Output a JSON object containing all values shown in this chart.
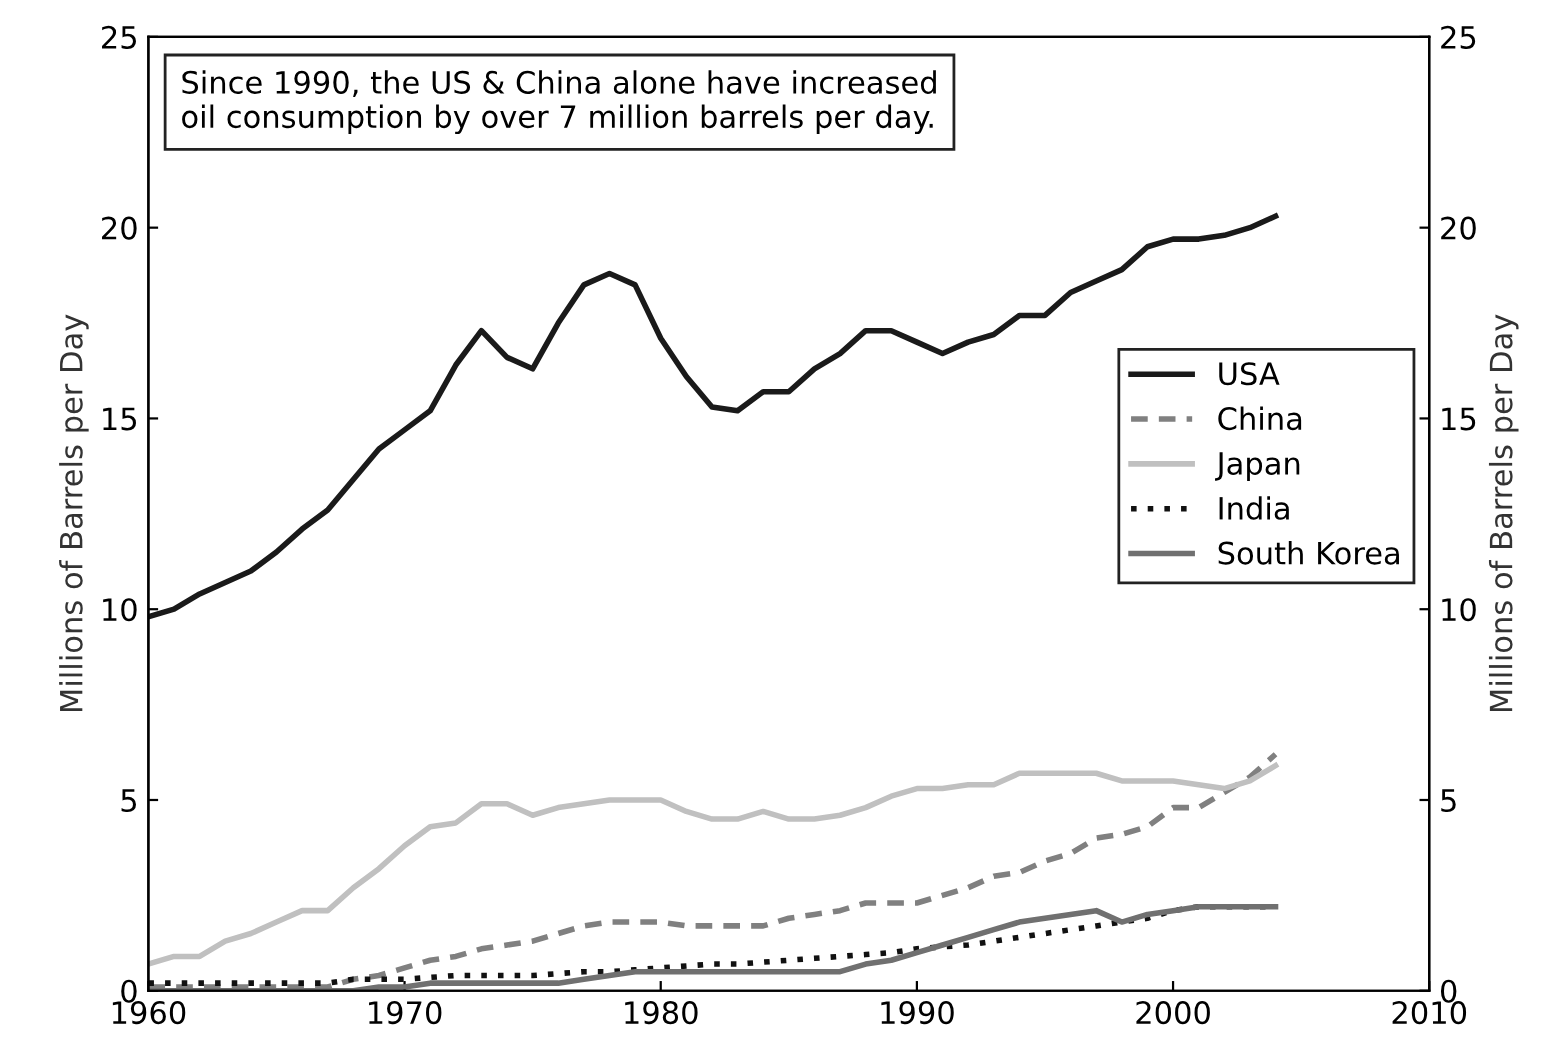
{
  "chart_data": {
    "type": "line",
    "annotations": [
      "Since 1990, the US & China alone have increased\noil consumption by over 7 million barrels per day."
    ],
    "ylabel": "Millions of Barrels per Day",
    "y2label": "Millions of Barrels per Day",
    "x": [
      1960,
      1961,
      1962,
      1963,
      1964,
      1965,
      1966,
      1967,
      1968,
      1969,
      1970,
      1971,
      1972,
      1973,
      1974,
      1975,
      1976,
      1977,
      1978,
      1979,
      1980,
      1981,
      1982,
      1983,
      1984,
      1985,
      1986,
      1987,
      1988,
      1989,
      1990,
      1991,
      1992,
      1993,
      1994,
      1995,
      1996,
      1997,
      1998,
      1999,
      2000,
      2001,
      2002,
      2003,
      2004
    ],
    "series": [
      {
        "name": "USA",
        "color": "#1a1a1a",
        "line_style": "solid",
        "values": [
          9.8,
          10.0,
          10.4,
          10.7,
          11.0,
          11.5,
          12.1,
          12.6,
          13.4,
          14.2,
          14.7,
          15.2,
          16.4,
          17.3,
          16.6,
          16.3,
          17.5,
          18.5,
          18.8,
          18.5,
          17.1,
          16.1,
          15.3,
          15.2,
          15.7,
          15.7,
          16.3,
          16.7,
          17.3,
          17.3,
          17.0,
          16.7,
          17.0,
          17.2,
          17.7,
          17.7,
          18.3,
          18.6,
          18.9,
          19.5,
          19.7,
          19.7,
          19.8,
          20.0,
          20.3
        ]
      },
      {
        "name": "China",
        "color": "#808080",
        "line_style": "dashed",
        "values": [
          0.1,
          0.1,
          0.1,
          0.1,
          0.1,
          0.1,
          0.1,
          0.1,
          0.3,
          0.4,
          0.6,
          0.8,
          0.9,
          1.1,
          1.2,
          1.3,
          1.5,
          1.7,
          1.8,
          1.8,
          1.8,
          1.7,
          1.7,
          1.7,
          1.7,
          1.9,
          2.0,
          2.1,
          2.3,
          2.3,
          2.3,
          2.5,
          2.7,
          3.0,
          3.1,
          3.4,
          3.6,
          4.0,
          4.1,
          4.3,
          4.8,
          4.8,
          5.2,
          5.6,
          6.2
        ]
      },
      {
        "name": "Japan",
        "color": "#c0c0c0",
        "line_style": "solid",
        "values": [
          0.7,
          0.9,
          0.9,
          1.3,
          1.5,
          1.8,
          2.1,
          2.1,
          2.7,
          3.2,
          3.8,
          4.3,
          4.4,
          4.9,
          4.9,
          4.6,
          4.8,
          4.9,
          5.0,
          5.0,
          5.0,
          4.7,
          4.5,
          4.5,
          4.7,
          4.5,
          4.5,
          4.6,
          4.8,
          5.1,
          5.3,
          5.3,
          5.4,
          5.4,
          5.7,
          5.7,
          5.7,
          5.7,
          5.5,
          5.5,
          5.5,
          5.4,
          5.3,
          5.5,
          5.9
        ]
      },
      {
        "name": "India",
        "color": "#111111",
        "line_style": "dotted",
        "values": [
          0.2,
          0.2,
          0.2,
          0.2,
          0.2,
          0.2,
          0.2,
          0.2,
          0.3,
          0.3,
          0.3,
          0.35,
          0.4,
          0.4,
          0.4,
          0.4,
          0.45,
          0.5,
          0.5,
          0.55,
          0.6,
          0.65,
          0.7,
          0.7,
          0.75,
          0.8,
          0.85,
          0.9,
          0.95,
          1.0,
          1.1,
          1.15,
          1.2,
          1.3,
          1.4,
          1.5,
          1.6,
          1.7,
          1.8,
          1.9,
          2.1,
          2.2,
          2.2,
          2.2,
          2.2
        ]
      },
      {
        "name": "South Korea",
        "color": "#707070",
        "line_style": "solid",
        "values": [
          0.0,
          0.0,
          0.0,
          0.0,
          0.0,
          0.0,
          0.0,
          0.0,
          0.0,
          0.1,
          0.1,
          0.2,
          0.2,
          0.2,
          0.2,
          0.2,
          0.2,
          0.3,
          0.4,
          0.5,
          0.5,
          0.5,
          0.5,
          0.5,
          0.5,
          0.5,
          0.5,
          0.5,
          0.7,
          0.8,
          1.0,
          1.2,
          1.4,
          1.6,
          1.8,
          1.9,
          2.0,
          2.1,
          1.8,
          2.0,
          2.1,
          2.2,
          2.2,
          2.2,
          2.2
        ]
      }
    ],
    "xlim": [
      1960,
      2010
    ],
    "xticks": [
      1960,
      1970,
      1980,
      1990,
      2000,
      2010
    ],
    "ylim": [
      0,
      25
    ],
    "yticks": [
      0,
      5,
      10,
      15,
      20,
      25
    ],
    "y2lim": [
      0,
      25
    ],
    "y2ticks": [
      0,
      5,
      10,
      15,
      20,
      25
    ],
    "legend": "right",
    "grid": false
  }
}
